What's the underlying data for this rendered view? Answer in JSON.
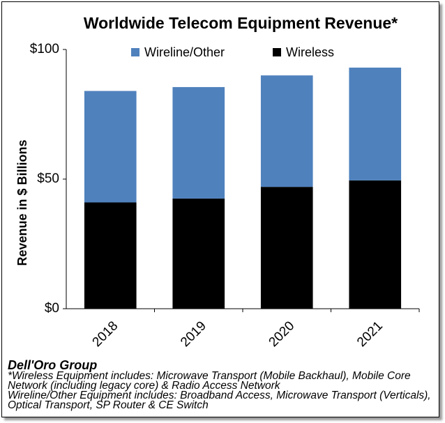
{
  "chart_data": {
    "type": "stacked_bar",
    "title": "Worldwide Telecom Equipment Revenue*",
    "y_label": "Revenue in $ Billions",
    "categories": [
      "2018",
      "2019",
      "2020",
      "2021"
    ],
    "series": [
      {
        "name": "Wireline/Other",
        "color": "#4f81bd",
        "values": [
          43,
          43,
          43,
          43.5
        ]
      },
      {
        "name": "Wireless",
        "color": "#000000",
        "values": [
          41,
          42.5,
          47,
          49.5
        ]
      }
    ],
    "ylim": [
      0,
      100
    ],
    "yticks": [
      {
        "value": 0,
        "label": "$0"
      },
      {
        "value": 50,
        "label": "$50"
      },
      {
        "value": 100,
        "label": "$100"
      }
    ],
    "grid": false,
    "legend": "top",
    "source": "Dell'Oro Group",
    "notes": [
      "*Wireless Equipment includes: Microwave Transport (Mobile Backhaul), Mobile Core Network (including legacy core) & Radio Access Network",
      "Wireline/Other Equipment includes: Broadband Access, Microwave Transport (Verticals), Optical Transport, SP Router & CE Switch"
    ]
  }
}
